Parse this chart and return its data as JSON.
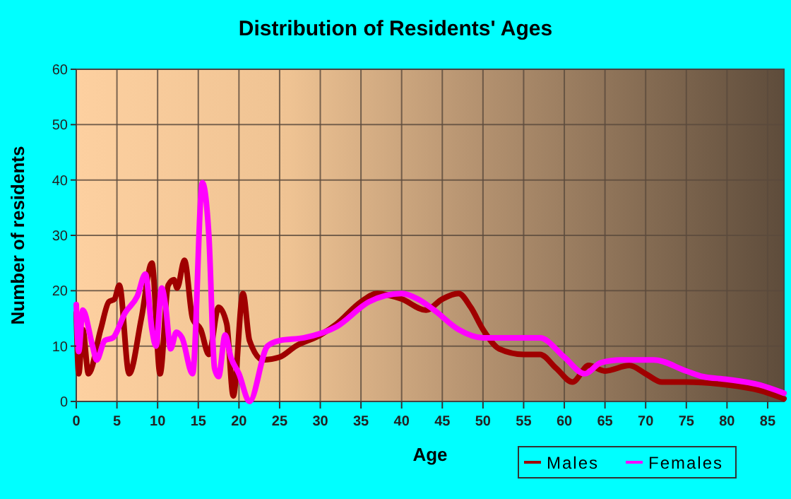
{
  "chart_data": {
    "type": "line",
    "title": "Distribution of Residents' Ages",
    "xlabel": "Age",
    "ylabel": "Number of residents",
    "xlim": [
      0,
      87
    ],
    "xticks": [
      0,
      5,
      10,
      15,
      20,
      25,
      30,
      35,
      40,
      45,
      50,
      55,
      60,
      65,
      70,
      75,
      80,
      85
    ],
    "ylim": [
      0,
      60
    ],
    "yticks": [
      0,
      10,
      20,
      30,
      40,
      50,
      60
    ],
    "grid": true,
    "legend": "bottom right",
    "line_style": "solid",
    "series": [
      {
        "name": "Males",
        "color": "#a00000",
        "x": [
          0,
          0.3,
          0.8,
          1.5,
          3,
          4,
          4.7,
          5.3,
          6.5,
          8,
          9.3,
          10.3,
          11.3,
          12,
          12.4,
          13.3,
          14.3,
          15.3,
          16.3,
          17.5,
          18.5,
          19.3,
          20.5,
          21.3,
          23,
          25,
          27,
          30,
          32,
          35,
          37,
          40,
          43,
          45,
          47,
          48.5,
          50,
          52,
          55,
          57,
          59,
          61,
          63,
          65,
          68,
          70,
          72,
          75,
          80,
          84,
          87
        ],
        "values": [
          16,
          5,
          13,
          5,
          13,
          18,
          18.5,
          21,
          5,
          15,
          25,
          5,
          21,
          22,
          20.5,
          25.5,
          15,
          13,
          8.5,
          17,
          14,
          1,
          19.5,
          11,
          7.5,
          8,
          10,
          12,
          14,
          18,
          19.5,
          18.5,
          16.5,
          18.5,
          19.5,
          17,
          13,
          9.5,
          8.5,
          8.5,
          6,
          3.5,
          6.5,
          5.5,
          6.5,
          5,
          3.5,
          3.5,
          3,
          2,
          0.5
        ]
      },
      {
        "name": "Females",
        "color": "#ff00ff",
        "x": [
          0,
          0.3,
          0.8,
          2,
          2.5,
          3.5,
          4.5,
          6,
          7.5,
          8.5,
          9.3,
          9.8,
          10.5,
          11,
          11.6,
          12.3,
          13,
          14.3,
          15.5,
          16.3,
          17,
          17.5,
          18.3,
          19,
          20,
          21.3,
          23.5,
          25,
          28,
          32,
          36,
          40,
          42,
          44,
          47,
          50,
          53,
          57,
          60,
          62.5,
          64.5,
          67,
          71,
          75,
          77,
          80,
          84,
          87
        ],
        "values": [
          17.5,
          9,
          16.5,
          10,
          7.5,
          11,
          11.5,
          16,
          19,
          23,
          13,
          10,
          20.5,
          17,
          9.5,
          12.5,
          11.5,
          5,
          39.5,
          30,
          6,
          4.5,
          12,
          8,
          5,
          0,
          10,
          11,
          11.5,
          13.5,
          18,
          19.5,
          18.5,
          16.5,
          13,
          11.5,
          11.5,
          11.5,
          8,
          5,
          7,
          7.5,
          7.5,
          5.5,
          4.5,
          4,
          3,
          1.5
        ]
      }
    ]
  }
}
